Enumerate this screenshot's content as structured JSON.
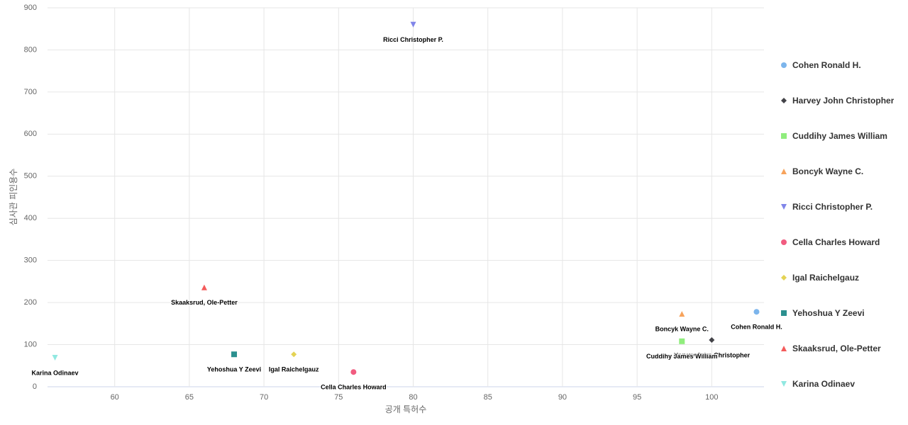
{
  "chart_data": {
    "type": "scatter",
    "x_label": "공개 특허수",
    "y_label": "심사관 피인용수",
    "xlim": [
      55.5,
      103.5
    ],
    "xticks": [
      60,
      65,
      70,
      75,
      80,
      85,
      90,
      95,
      100
    ],
    "ylim": [
      0,
      900
    ],
    "yticks": [
      0,
      100,
      200,
      300,
      400,
      500,
      600,
      700,
      800,
      900
    ],
    "grid": true,
    "legend": "right",
    "series": [
      {
        "name": "Cohen Ronald H.",
        "color": "#7cb5ec",
        "symbol": "circle",
        "x": [
          103
        ],
        "values": [
          178
        ]
      },
      {
        "name": "Harvey John Christopher",
        "color": "#434348",
        "symbol": "diamond",
        "x": [
          100
        ],
        "values": [
          111
        ]
      },
      {
        "name": "Cuddihy James William",
        "color": "#90ed7d",
        "symbol": "square",
        "x": [
          98
        ],
        "values": [
          108
        ]
      },
      {
        "name": "Boncyk Wayne C.",
        "color": "#f7a35c",
        "symbol": "triangle",
        "x": [
          98
        ],
        "values": [
          173
        ]
      },
      {
        "name": "Ricci Christopher P.",
        "color": "#8085e9",
        "symbol": "triangle-down",
        "x": [
          80
        ],
        "values": [
          860
        ]
      },
      {
        "name": "Cella Charles Howard",
        "color": "#f15c80",
        "symbol": "circle",
        "x": [
          76
        ],
        "values": [
          35
        ]
      },
      {
        "name": "Igal Raichelgauz",
        "color": "#e4d354",
        "symbol": "diamond",
        "x": [
          72
        ],
        "values": [
          77
        ]
      },
      {
        "name": "Yehoshua Y Zeevi",
        "color": "#2b908f",
        "symbol": "square",
        "x": [
          68
        ],
        "values": [
          77
        ]
      },
      {
        "name": "Skaaksrud, Ole-Petter",
        "color": "#f45b5b",
        "symbol": "triangle",
        "x": [
          66
        ],
        "values": [
          236
        ]
      },
      {
        "name": "Karina Odinaev",
        "color": "#91e8e1",
        "symbol": "triangle-down",
        "x": [
          56
        ],
        "values": [
          69
        ]
      }
    ]
  }
}
